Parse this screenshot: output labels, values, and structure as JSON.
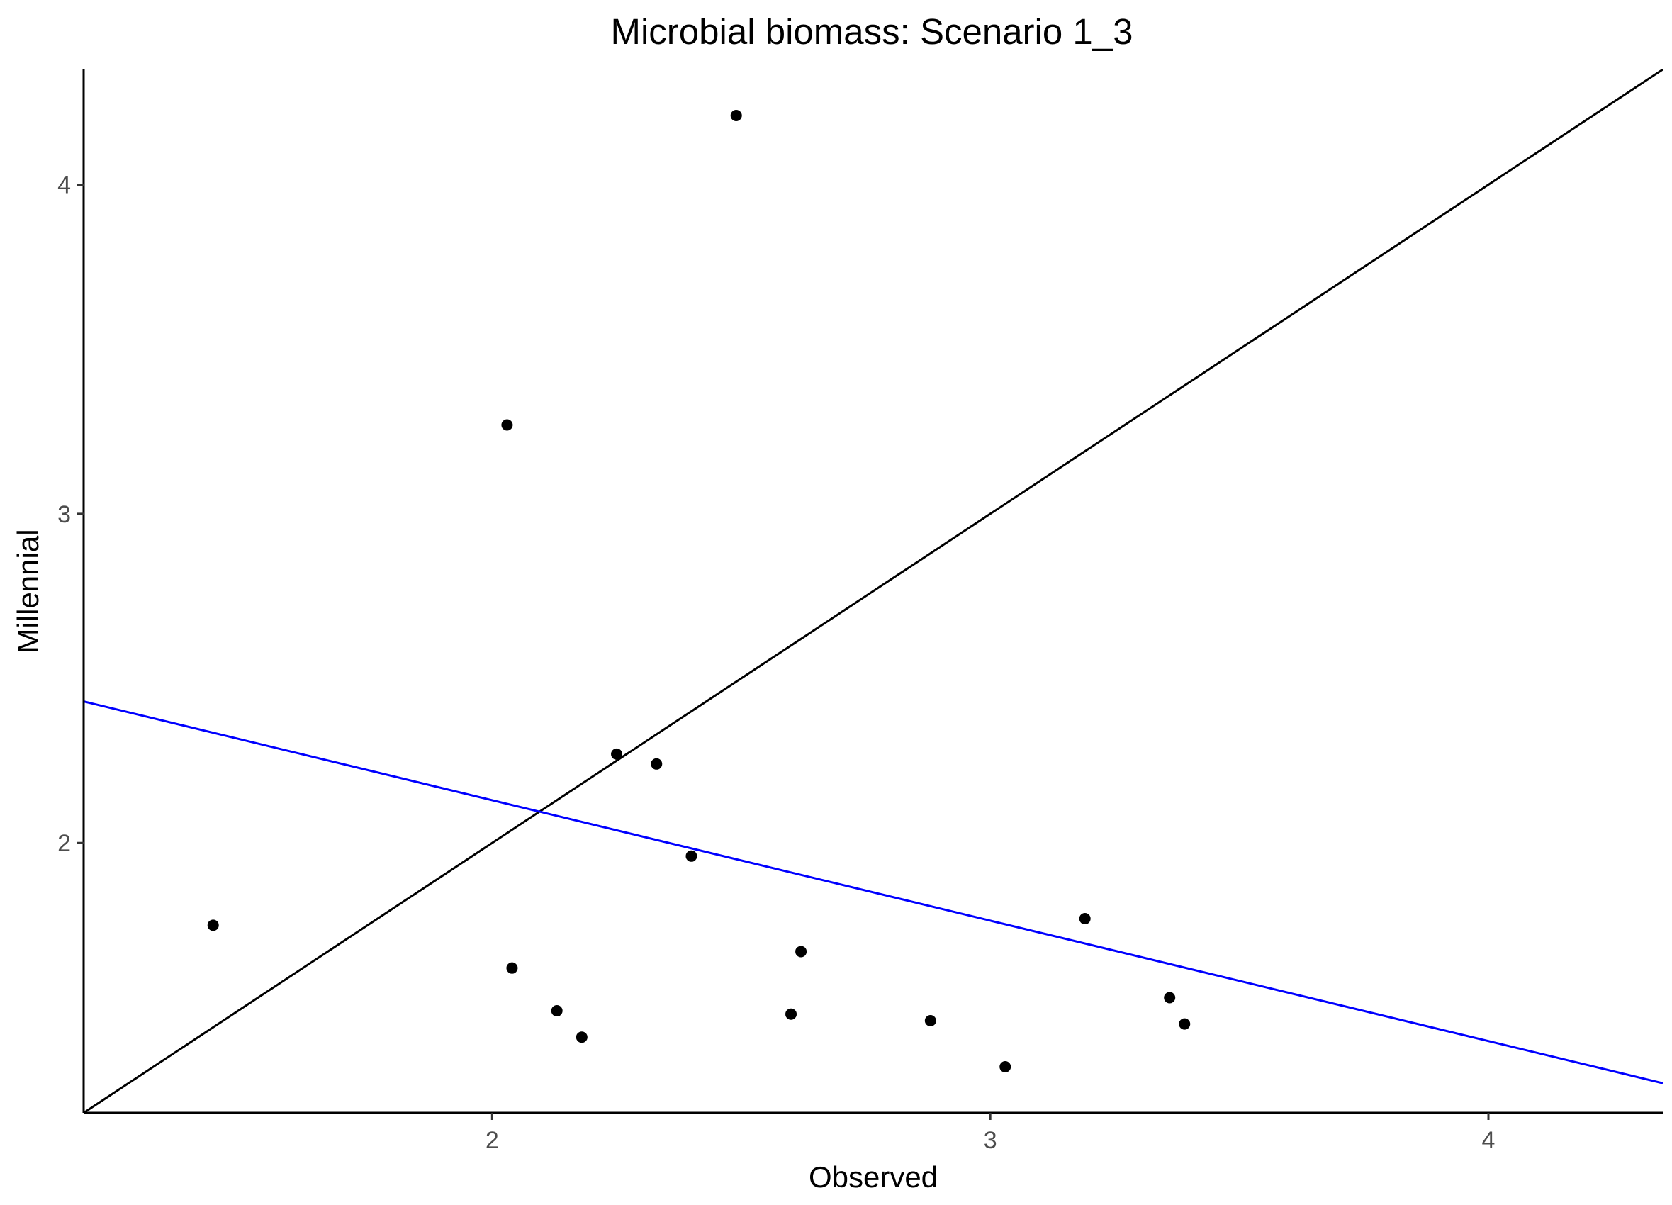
{
  "chart_data": {
    "type": "scatter",
    "title": "Microbial biomass: Scenario 1_3",
    "xlabel": "Observed",
    "ylabel": "Millennial",
    "xlim": [
      1.18,
      4.35
    ],
    "ylim": [
      1.18,
      4.35
    ],
    "xticks": [
      2,
      3,
      4
    ],
    "xtick_labels": [
      "2",
      "3",
      "4"
    ],
    "yticks": [
      2,
      3,
      4
    ],
    "ytick_labels": [
      "2",
      "3",
      "4"
    ],
    "grid": false,
    "points": [
      {
        "x": 1.44,
        "y": 1.75
      },
      {
        "x": 2.03,
        "y": 3.27
      },
      {
        "x": 2.04,
        "y": 1.62
      },
      {
        "x": 2.13,
        "y": 1.49
      },
      {
        "x": 2.18,
        "y": 1.41
      },
      {
        "x": 2.25,
        "y": 2.27
      },
      {
        "x": 2.33,
        "y": 2.24
      },
      {
        "x": 2.4,
        "y": 1.96
      },
      {
        "x": 2.49,
        "y": 4.21
      },
      {
        "x": 2.6,
        "y": 1.48
      },
      {
        "x": 2.62,
        "y": 1.67
      },
      {
        "x": 2.88,
        "y": 1.46
      },
      {
        "x": 3.03,
        "y": 1.32
      },
      {
        "x": 3.19,
        "y": 1.77
      },
      {
        "x": 3.36,
        "y": 1.53
      },
      {
        "x": 3.39,
        "y": 1.45
      }
    ],
    "reference_line": {
      "name": "1:1 line",
      "slope": 1,
      "intercept": 0,
      "color": "#000000"
    },
    "fit_line": {
      "name": "regression",
      "x": [
        1.18,
        4.35
      ],
      "y": [
        2.43,
        1.27
      ],
      "color": "#0000ff"
    },
    "point_color": "#000000"
  }
}
